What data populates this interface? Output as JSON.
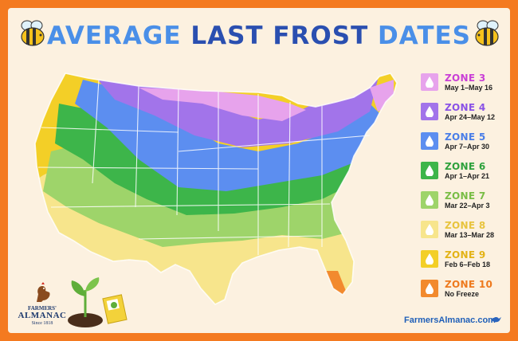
{
  "title": {
    "word1": "AVERAGE",
    "word2": "LAST FROST",
    "word3": "DATES"
  },
  "legend": [
    {
      "zone": "ZONE 3",
      "dates": "May 1–May 16",
      "color": "#e7a3ec",
      "text_color": "#c93fd6"
    },
    {
      "zone": "ZONE 4",
      "dates": "Apr 24–May 12",
      "color": "#a274ea",
      "text_color": "#8a52e6"
    },
    {
      "zone": "ZONE 5",
      "dates": "Apr 7–Apr 30",
      "color": "#5c8ef0",
      "text_color": "#4a7ee8"
    },
    {
      "zone": "ZONE 6",
      "dates": "Apr 1–Apr 21",
      "color": "#3db54a",
      "text_color": "#2ea13c"
    },
    {
      "zone": "ZONE 7",
      "dates": "Mar 22–Apr 3",
      "color": "#9ed46a",
      "text_color": "#79bd45"
    },
    {
      "zone": "ZONE 8",
      "dates": "Mar 13–Mar 28",
      "color": "#f7e58c",
      "text_color": "#e8c43e"
    },
    {
      "zone": "ZONE 9",
      "dates": "Feb 6–Feb 18",
      "color": "#f3cf27",
      "text_color": "#e3b316"
    },
    {
      "zone": "ZONE 10",
      "dates": "No Freeze",
      "color": "#f28a2e",
      "text_color": "#ee7a1e"
    }
  ],
  "website": "FarmersAlmanac.com",
  "logo": {
    "line1": "FARMERS'",
    "line2": "ALMANAC",
    "line3": "Since 1818"
  },
  "icons": {
    "bee": "bee-icon",
    "plant": "seedling-icon",
    "seed_packet": "seed-packet-icon",
    "rooster": "rooster-icon",
    "drop": "water-drop-icon",
    "bird": "bird-icon"
  }
}
